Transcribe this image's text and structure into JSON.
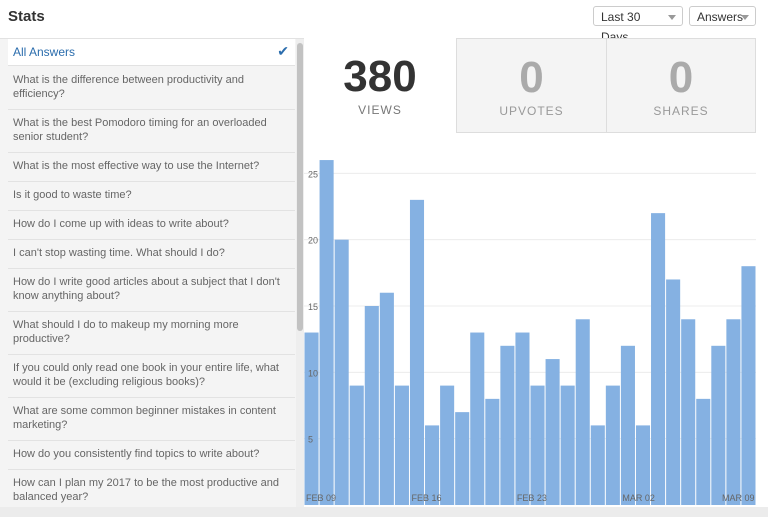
{
  "header": {
    "title": "Stats",
    "range_select": "Last 30 Days",
    "type_select": "Answers"
  },
  "sidebar": {
    "items": [
      {
        "label": "All Answers",
        "active": true
      },
      {
        "label": "What is the difference between productivity and efficiency?"
      },
      {
        "label": "What is the best Pomodoro timing for an overloaded senior student?"
      },
      {
        "label": "What is the most effective way to use the Internet?"
      },
      {
        "label": "Is it good to waste time?"
      },
      {
        "label": "How do I come up with ideas to write about?"
      },
      {
        "label": "I can't stop wasting time. What should I do?"
      },
      {
        "label": "How do I write good articles about a subject that I don't know anything about?"
      },
      {
        "label": "What should I do to makeup my morning more productive?"
      },
      {
        "label": "If you could only read one book in your entire life, what would it be (excluding religious books)?"
      },
      {
        "label": "What are some common beginner mistakes in content marketing?"
      },
      {
        "label": "How do you consistently find topics to write about?"
      },
      {
        "label": "How can I plan my 2017 to be the most productive and balanced year?"
      }
    ]
  },
  "stats": [
    {
      "value": "380",
      "label": "VIEWS"
    },
    {
      "value": "0",
      "label": "UPVOTES"
    },
    {
      "value": "0",
      "label": "SHARES"
    }
  ],
  "colors": {
    "bar": "#85b1e2",
    "accent": "#2b6dad"
  },
  "chart_data": {
    "type": "bar",
    "values": [
      13,
      26,
      20,
      9,
      15,
      16,
      9,
      23,
      6,
      9,
      7,
      13,
      8,
      12,
      13,
      9,
      11,
      9,
      14,
      6,
      9,
      12,
      6,
      22,
      17,
      14,
      8,
      12,
      14,
      18
    ],
    "yticks": [
      5,
      10,
      15,
      20,
      25
    ],
    "ylim": [
      0,
      27
    ],
    "xtick_labels": [
      "FEB 09",
      "FEB 16",
      "FEB 23",
      "MAR 02",
      "MAR 09"
    ],
    "xtick_index": [
      0,
      7,
      14,
      21,
      28
    ],
    "grid": true
  }
}
